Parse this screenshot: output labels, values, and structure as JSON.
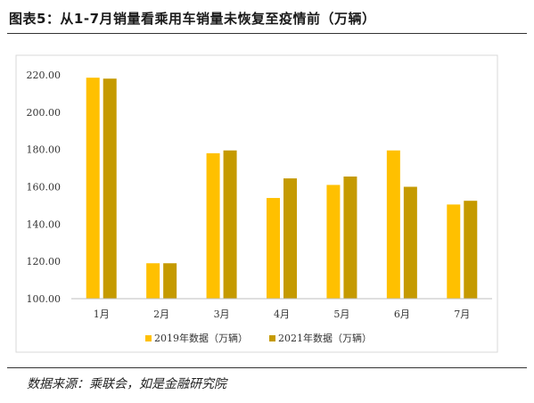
{
  "title": "图表5：从1-7月销量看乘用车销量未恢复至疫情前（万辆）",
  "source": "数据来源：乘联会，如是金融研究院",
  "colors": {
    "series2019": "#FFC000",
    "series2021": "#C59A00",
    "plot_border": "#d9d9d9"
  },
  "chart_data": {
    "type": "bar",
    "categories": [
      "1月",
      "2月",
      "3月",
      "4月",
      "5月",
      "6月",
      "7月"
    ],
    "series": [
      {
        "name": "2019年数据（万辆）",
        "values": [
          218.5,
          119.0,
          178.0,
          154.0,
          161.0,
          179.5,
          150.5
        ]
      },
      {
        "name": "2021年数据（万辆）",
        "values": [
          218.0,
          119.0,
          179.5,
          164.5,
          165.5,
          160.0,
          152.5
        ]
      }
    ],
    "yticks": [
      "100.00",
      "120.00",
      "140.00",
      "160.00",
      "180.00",
      "200.00",
      "220.00"
    ],
    "ylim": [
      100,
      230
    ],
    "legend_position": "bottom",
    "grid": false
  }
}
